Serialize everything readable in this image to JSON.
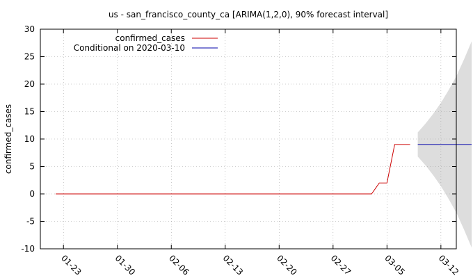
{
  "chart_data": {
    "type": "line",
    "title": "us - san_francisco_county_ca [ARIMA(1,2,0), 90% forecast interval]",
    "xlabel": "",
    "ylabel": "confirmed_cases",
    "ylim": [
      -10,
      30
    ],
    "yticks": [
      -10,
      -5,
      0,
      5,
      10,
      15,
      20,
      25,
      30
    ],
    "xlim": [
      -2,
      52
    ],
    "xticks": [
      {
        "label": "01-23",
        "day": 1
      },
      {
        "label": "01-30",
        "day": 8
      },
      {
        "label": "02-06",
        "day": 15
      },
      {
        "label": "02-13",
        "day": 22
      },
      {
        "label": "02-20",
        "day": 29
      },
      {
        "label": "02-27",
        "day": 36
      },
      {
        "label": "03-05",
        "day": 43
      },
      {
        "label": "03-12",
        "day": 50
      }
    ],
    "grid": true,
    "legend_position": "top-left",
    "series": [
      {
        "name": "confirmed_cases",
        "color": "#cc0000",
        "points": [
          [
            0,
            0
          ],
          [
            41,
            0
          ],
          [
            42,
            2
          ],
          [
            43,
            2
          ],
          [
            44,
            9
          ],
          [
            46,
            9
          ]
        ]
      },
      {
        "name": "Conditional on 2020-03-10",
        "color": "#0000aa",
        "points": [
          [
            47,
            9
          ],
          [
            54,
            9
          ]
        ]
      }
    ],
    "interval": {
      "name": "90% forecast interval",
      "color": "#dddddd",
      "upper": [
        [
          47,
          11.2
        ],
        [
          48,
          12.8
        ],
        [
          49,
          14.6
        ],
        [
          50,
          16.6
        ],
        [
          51,
          18.9
        ],
        [
          52,
          21.4
        ],
        [
          53,
          24.5
        ],
        [
          54,
          27.8
        ]
      ],
      "lower": [
        [
          47,
          6.8
        ],
        [
          48,
          5.2
        ],
        [
          49,
          3.4
        ],
        [
          50,
          1.4
        ],
        [
          51,
          -0.9
        ],
        [
          52,
          -3.4
        ],
        [
          53,
          -6.5
        ],
        [
          54,
          -9.8
        ]
      ]
    }
  }
}
